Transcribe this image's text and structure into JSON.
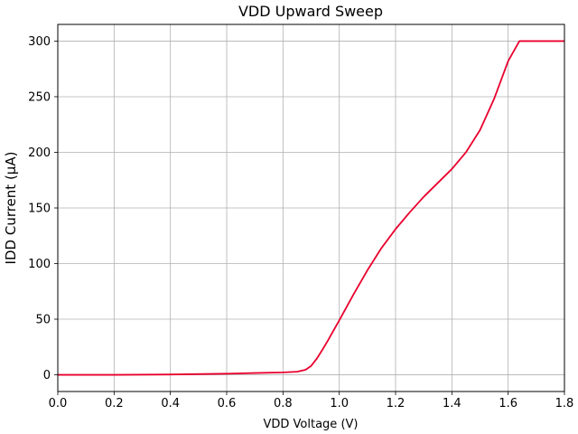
{
  "chart_data": {
    "type": "line",
    "title": "VDD Upward Sweep",
    "xlabel": "VDD Voltage (V)",
    "ylabel": "IDD Current (µA)",
    "xlim": [
      0.0,
      1.8
    ],
    "ylim": [
      -15,
      315
    ],
    "xticks": [
      0.0,
      0.2,
      0.4,
      0.6,
      0.8,
      1.0,
      1.2,
      1.4,
      1.6,
      1.8
    ],
    "xtick_labels": [
      "0.0",
      "0.2",
      "0.4",
      "0.6",
      "0.8",
      "1.0",
      "1.2",
      "1.4",
      "1.6",
      "1.8"
    ],
    "yticks": [
      0,
      50,
      100,
      150,
      200,
      250,
      300
    ],
    "ytick_labels": [
      "0",
      "50",
      "100",
      "150",
      "200",
      "250",
      "300"
    ],
    "grid": true,
    "series": [
      {
        "color": "#e8002d",
        "x": [
          0.0,
          0.2,
          0.4,
          0.6,
          0.7,
          0.8,
          0.85,
          0.88,
          0.9,
          0.92,
          0.94,
          0.96,
          0.98,
          1.0,
          1.05,
          1.1,
          1.15,
          1.2,
          1.25,
          1.3,
          1.35,
          1.4,
          1.45,
          1.5,
          1.55,
          1.6,
          1.64,
          1.7,
          1.8
        ],
        "y": [
          0,
          0,
          0.3,
          1.0,
          1.6,
          2.2,
          2.8,
          4.5,
          8.0,
          14.5,
          22.5,
          31.0,
          40.0,
          49.0,
          72.0,
          94.0,
          114.0,
          131.0,
          146.0,
          160.0,
          172.5,
          185.0,
          200.0,
          220.0,
          248.0,
          282.0,
          300.0,
          300.0,
          300.0
        ]
      }
    ]
  }
}
